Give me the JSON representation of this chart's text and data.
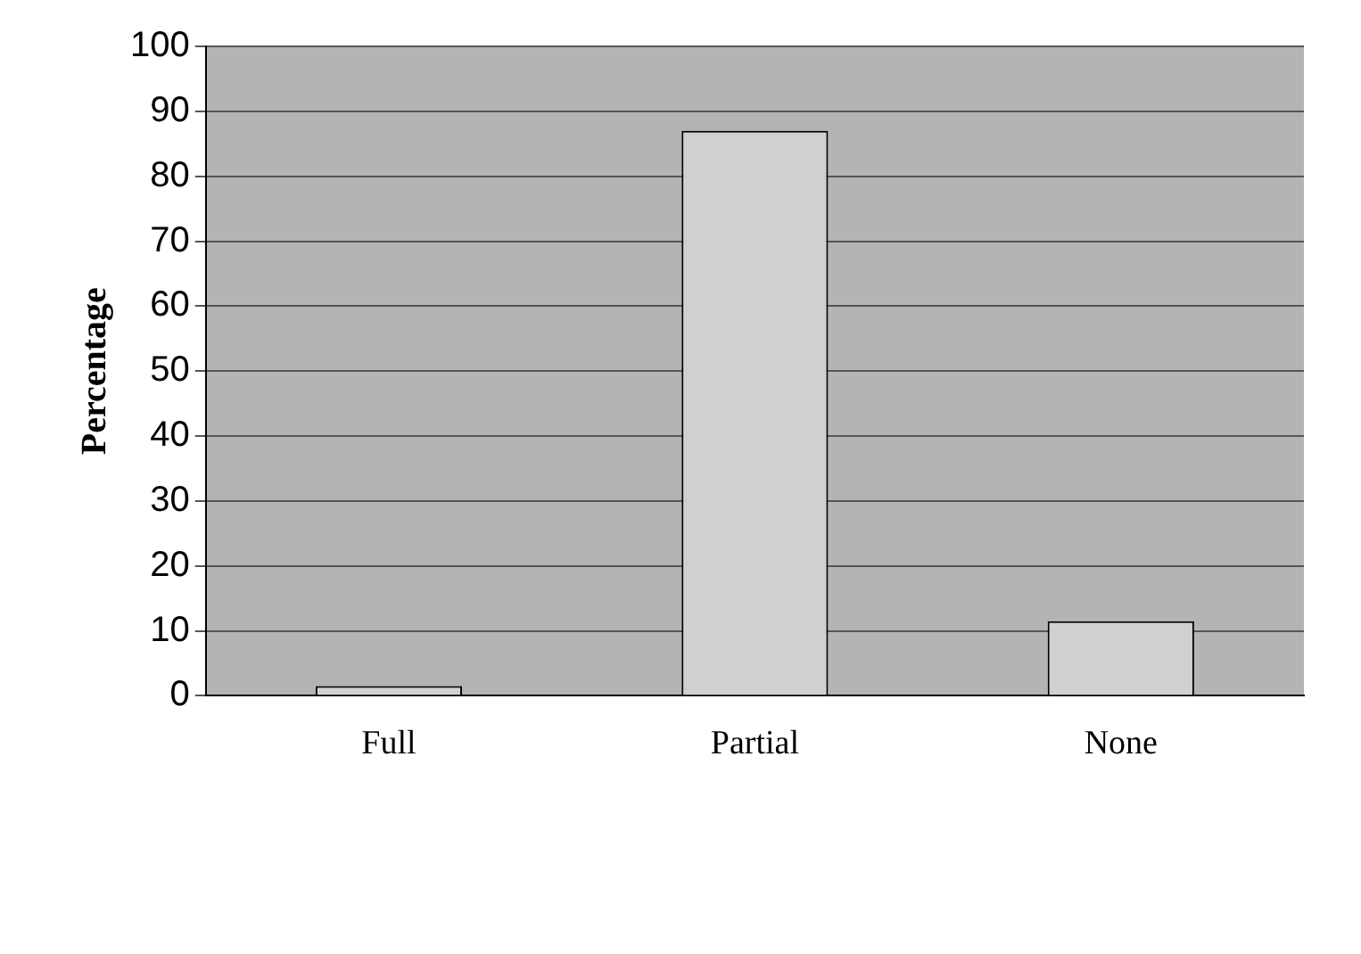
{
  "chart_data": {
    "type": "bar",
    "ylabel": "Percentage",
    "categories": [
      "Full",
      "Partial",
      "None"
    ],
    "values": [
      1.5,
      87,
      11.5
    ],
    "color": "#d0d0d0",
    "ylim": [
      0,
      100
    ],
    "yticks": [
      0,
      10,
      20,
      30,
      40,
      50,
      60,
      70,
      80,
      90,
      100
    ],
    "grid": "y",
    "legend": false
  }
}
